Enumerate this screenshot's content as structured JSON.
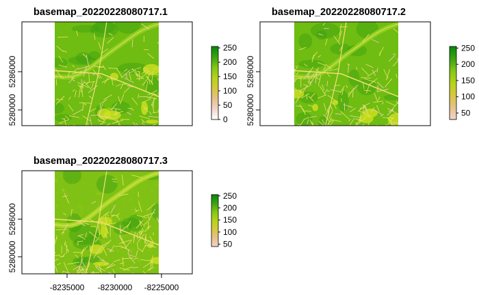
{
  "chart_data": [
    {
      "type": "heatmap",
      "title": "basemap_20220228080717.1",
      "x_ticks": [],
      "y_ticks": [
        "5280000",
        "5286000"
      ],
      "legend_ticks": [
        "250",
        "200",
        "150",
        "100",
        "50",
        "0"
      ],
      "legend_range": [
        0,
        255
      ],
      "colors": [
        "#ffffff",
        "#f2d4c8",
        "#e5c08a",
        "#d6c83c",
        "#b5d41c",
        "#86c815",
        "#3ea611",
        "#0c8a0c"
      ]
    },
    {
      "type": "heatmap",
      "title": "basemap_20220228080717.2",
      "x_ticks": [],
      "y_ticks": [
        "5280000",
        "5286000"
      ],
      "legend_ticks": [
        "250",
        "200",
        "150",
        "100",
        "50"
      ],
      "legend_range": [
        30,
        255
      ],
      "colors": [
        "#f2d4c8",
        "#e5c08a",
        "#d6c83c",
        "#b5d41c",
        "#86c815",
        "#3ea611",
        "#0c8a0c"
      ]
    },
    {
      "type": "heatmap",
      "title": "basemap_20220228080717.3",
      "x_ticks": [
        "-8235000",
        "-8230000",
        "-8225000"
      ],
      "y_ticks": [
        "5280000",
        "5286000"
      ],
      "legend_ticks": [
        "250",
        "200",
        "150",
        "100",
        "50"
      ],
      "legend_range": [
        40,
        255
      ],
      "colors": [
        "#f2d4c8",
        "#e5c08a",
        "#d6c83c",
        "#b5d41c",
        "#86c815",
        "#3ea611",
        "#0c8a0c"
      ]
    }
  ]
}
